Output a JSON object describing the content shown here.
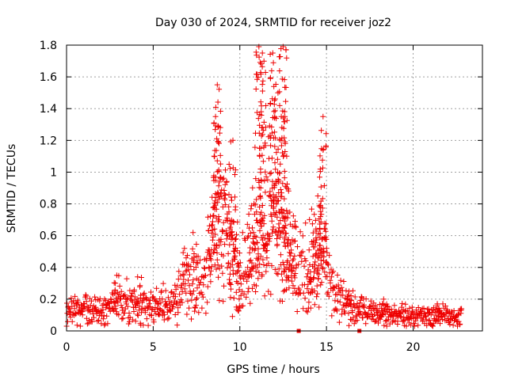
{
  "chart_data": {
    "type": "scatter",
    "title": "Day 030 of 2024, SRMTID for receiver joz2",
    "xlabel": "GPS time / hours",
    "ylabel": "SRMTID / TECUs",
    "xlim": [
      0,
      24
    ],
    "ylim": [
      0,
      1.8
    ],
    "xticks": [
      0,
      5,
      10,
      15,
      20
    ],
    "yticks": [
      0,
      0.2,
      0.4,
      0.6,
      0.8,
      1,
      1.2,
      1.4,
      1.6,
      1.8
    ],
    "xtick_labels": [
      "0",
      "5",
      "10",
      "15",
      "20"
    ],
    "ytick_labels": [
      "0",
      "0.2",
      "0.4",
      "0.6",
      "0.8",
      "1",
      "1.2",
      "1.4",
      "1.6",
      "1.8"
    ],
    "grid": true,
    "marker": "plus",
    "color": "#ee0000",
    "series": [
      {
        "name": "SRMTID",
        "envelope": [
          {
            "x": 0,
            "y": 0.12
          },
          {
            "x": 1,
            "y": 0.14
          },
          {
            "x": 2,
            "y": 0.12
          },
          {
            "x": 3,
            "y": 0.2
          },
          {
            "x": 4,
            "y": 0.16
          },
          {
            "x": 5,
            "y": 0.15
          },
          {
            "x": 6,
            "y": 0.17
          },
          {
            "x": 7,
            "y": 0.3
          },
          {
            "x": 8,
            "y": 0.3
          },
          {
            "x": 8.8,
            "y": 0.8
          },
          {
            "x": 9.5,
            "y": 0.5
          },
          {
            "x": 10.3,
            "y": 0.35
          },
          {
            "x": 11,
            "y": 0.6
          },
          {
            "x": 12,
            "y": 0.75
          },
          {
            "x": 12.5,
            "y": 0.55
          },
          {
            "x": 13.5,
            "y": 0.35
          },
          {
            "x": 14.8,
            "y": 0.5
          },
          {
            "x": 15.5,
            "y": 0.2
          },
          {
            "x": 17,
            "y": 0.12
          },
          {
            "x": 19,
            "y": 0.1
          },
          {
            "x": 21,
            "y": 0.09
          },
          {
            "x": 22.8,
            "y": 0.1
          }
        ],
        "peaks": [
          {
            "x": 2.9,
            "y": 0.35
          },
          {
            "x": 4.1,
            "y": 0.34
          },
          {
            "x": 6.8,
            "y": 0.52
          },
          {
            "x": 7.3,
            "y": 0.62
          },
          {
            "x": 8.6,
            "y": 1.35
          },
          {
            "x": 8.7,
            "y": 1.55
          },
          {
            "x": 9.6,
            "y": 1.2
          },
          {
            "x": 11.1,
            "y": 1.79
          },
          {
            "x": 11.3,
            "y": 1.75
          },
          {
            "x": 11.9,
            "y": 1.75
          },
          {
            "x": 12.2,
            "y": 1.5
          },
          {
            "x": 12.5,
            "y": 1.79
          },
          {
            "x": 12.6,
            "y": 1.35
          },
          {
            "x": 14.5,
            "y": 0.85
          },
          {
            "x": 14.8,
            "y": 1.35
          },
          {
            "x": 16.3,
            "y": 0.25
          },
          {
            "x": 18.3,
            "y": 0.2
          },
          {
            "x": 21.4,
            "y": 0.17
          }
        ],
        "outliers_at_zero": [
          13.4,
          16.9
        ]
      }
    ]
  }
}
